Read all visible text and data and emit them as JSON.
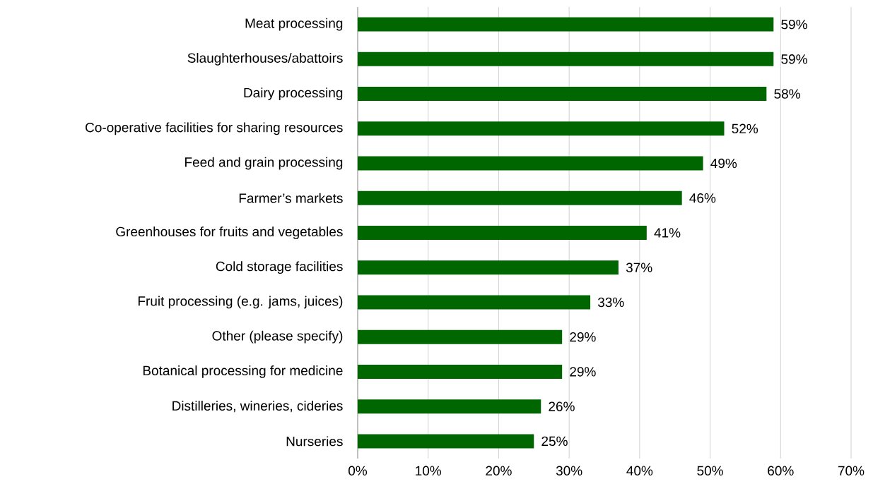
{
  "chart_data": {
    "type": "bar",
    "orientation": "horizontal",
    "categories": [
      "Meat processing",
      "Slaughterhouses/abattoirs",
      "Dairy processing",
      "Co-operative facilities for sharing resources",
      "Feed and grain processing",
      "Farmer’s markets",
      "Greenhouses for fruits and vegetables",
      "Cold storage facilities",
      "Fruit processing (e.g. jams, juices)",
      "Other (please specify)",
      "Botanical processing for medicine",
      "Distilleries, wineries, cideries",
      "Nurseries"
    ],
    "values": [
      59,
      59,
      58,
      52,
      49,
      46,
      41,
      37,
      33,
      29,
      29,
      26,
      25
    ],
    "value_labels": [
      "59%",
      "59%",
      "58%",
      "52%",
      "49%",
      "46%",
      "41%",
      "37%",
      "33%",
      "29%",
      "29%",
      "26%",
      "25%"
    ],
    "color": "#006600",
    "xlim": [
      0,
      70
    ],
    "xticks": [
      {
        "value": 0,
        "label": "0%"
      },
      {
        "value": 10,
        "label": "10%"
      },
      {
        "value": 20,
        "label": "20%"
      },
      {
        "value": 30,
        "label": "30%"
      },
      {
        "value": 40,
        "label": "40%"
      },
      {
        "value": 50,
        "label": "50%"
      },
      {
        "value": 60,
        "label": "60%"
      },
      {
        "value": 70,
        "label": "70%"
      }
    ],
    "grid": "x"
  }
}
